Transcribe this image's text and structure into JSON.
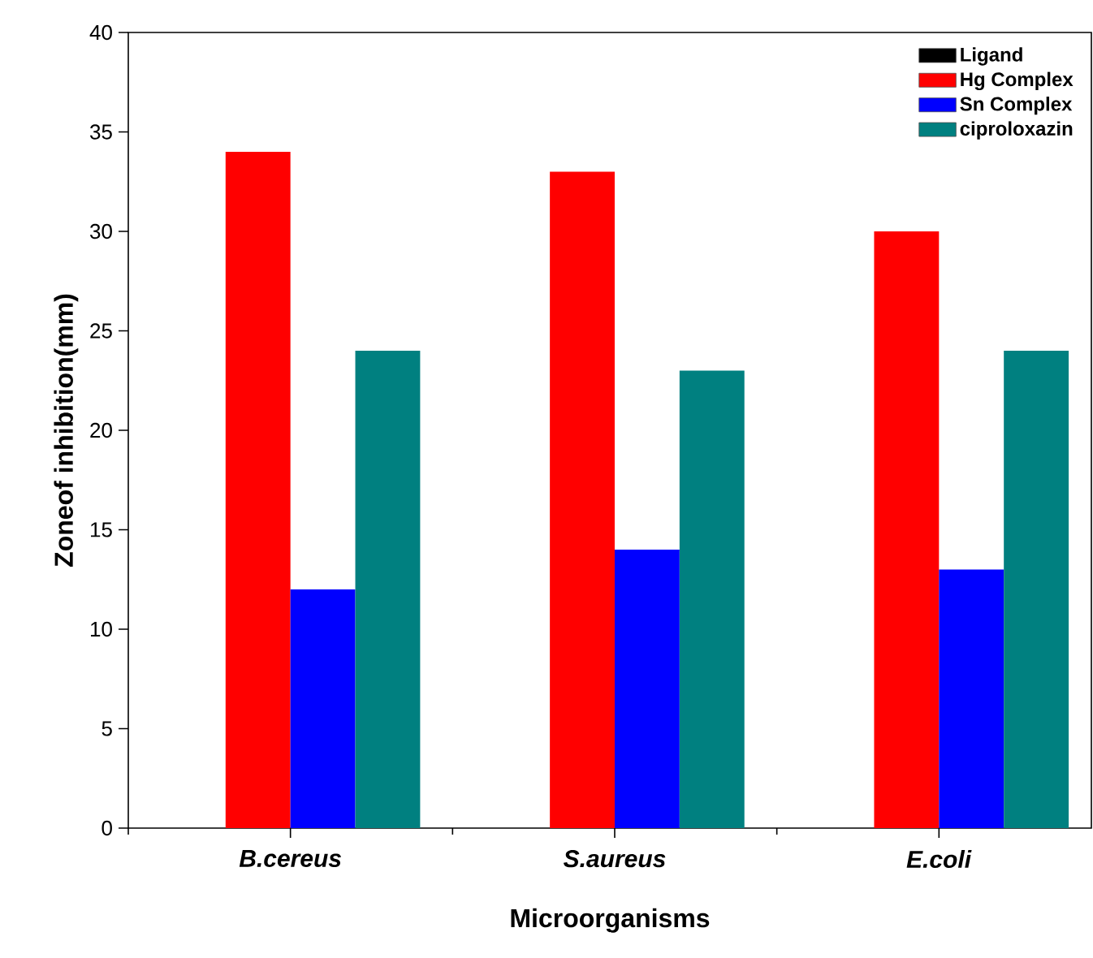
{
  "chart_data": {
    "type": "bar",
    "xlabel": "Microorganisms",
    "ylabel": "Zoneof inhibition(mm)",
    "categories": [
      "*B.cereus*",
      "*S.aureus*",
      "*E.coli*"
    ],
    "series": [
      {
        "name": "Ligand",
        "color": "#000000",
        "values": [
          null,
          null,
          null
        ]
      },
      {
        "name": "Hg Complex",
        "color": "#ff0000",
        "values": [
          34,
          33,
          30
        ]
      },
      {
        "name": "Sn Complex",
        "color": "#0000ff",
        "values": [
          12,
          14,
          13
        ]
      },
      {
        "name": "ciproloxazin",
        "color": "#008080",
        "values": [
          24,
          23,
          24
        ]
      }
    ],
    "ylim": [
      0,
      40
    ],
    "yticks": [
      0,
      5,
      10,
      15,
      20,
      25,
      30,
      35,
      40
    ],
    "legend": "top right",
    "grid": false
  }
}
